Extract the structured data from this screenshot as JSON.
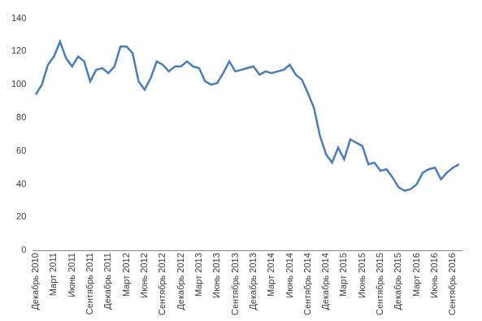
{
  "chart_data": {
    "type": "line",
    "categories": [
      "Декабрь 2010",
      null,
      null,
      "Март 2011",
      null,
      null,
      "Июнь 2011",
      null,
      null,
      "Сентябрь 2011",
      null,
      null,
      "Декабрь 2011",
      null,
      null,
      "Март 2012",
      null,
      null,
      "Июнь 2012",
      null,
      null,
      "Сентябрь 2012",
      null,
      null,
      "Декабрь 2012",
      null,
      null,
      "Март 2013",
      null,
      null,
      "Июнь 2013",
      null,
      null,
      "Сентябрь 2013",
      null,
      null,
      "Декабрь 2013",
      null,
      null,
      "Март 2014",
      null,
      null,
      "Июнь 2014",
      null,
      null,
      "Сентябрь 2014",
      null,
      null,
      "Декабрь 2014",
      null,
      null,
      "Март 2015",
      null,
      null,
      "Июнь 2015",
      null,
      null,
      "Сентябрь 2015",
      null,
      null,
      "Декабрь 2015",
      null,
      null,
      "Март 2016",
      null,
      null,
      "Июнь 2016",
      null,
      null,
      "Сентябрь 2016",
      null
    ],
    "values": [
      94,
      100,
      112,
      117,
      126,
      116,
      111,
      117,
      114,
      102,
      109,
      110,
      107,
      111,
      123,
      123,
      119,
      102,
      97,
      104,
      114,
      112,
      108,
      111,
      111,
      114,
      111,
      110,
      102,
      100,
      101,
      107,
      114,
      108,
      109,
      110,
      111,
      106,
      108,
      107,
      108,
      109,
      112,
      106,
      103,
      95,
      86,
      69,
      58,
      53,
      62,
      55,
      67,
      65,
      63,
      52,
      53,
      48,
      49,
      44,
      38,
      36,
      37,
      40,
      47,
      49,
      50,
      43,
      47,
      50,
      52
    ],
    "color": "#4a7ebb",
    "ylim": [
      0,
      140
    ],
    "yticks": [
      0,
      20,
      40,
      60,
      80,
      100,
      120,
      140
    ],
    "grid": false
  }
}
